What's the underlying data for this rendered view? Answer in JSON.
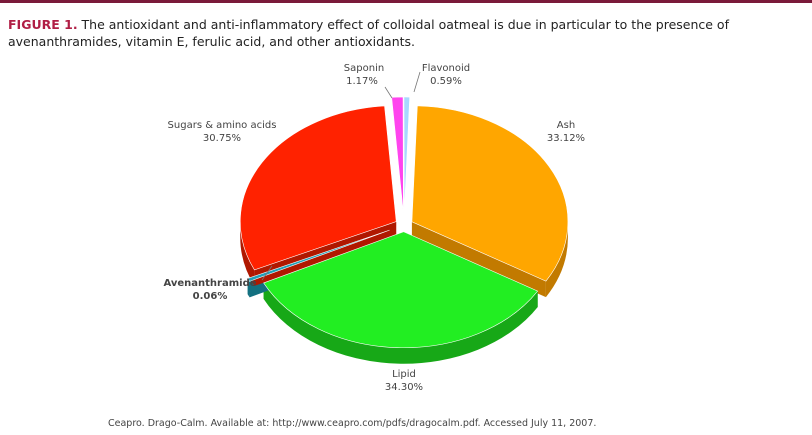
{
  "figure": {
    "label": "FIGURE 1.",
    "caption": "The antioxidant and anti-inflammatory effect of colloidal oatmeal is due in particular to the presence of avenanthramides, vitamin E, ferulic acid, and other antioxidants.",
    "source": "Ceapro. Drago-Calm. Available at: http://www.ceapro.com/pdfs/dragocalm.pdf. Accessed July 11, 2007."
  },
  "chart_data": {
    "type": "pie",
    "style": "3d-exploded",
    "slices": [
      {
        "name": "Ash",
        "value": 33.12,
        "label": "33.12%",
        "color": "#ffa600",
        "side": "#c27a00",
        "bold": false
      },
      {
        "name": "Lipid",
        "value": 34.3,
        "label": "34.30%",
        "color": "#22ee22",
        "side": "#17a817",
        "bold": false
      },
      {
        "name": "Avenanthramide",
        "value": 0.06,
        "label": "0.06%",
        "color": "#20a0b8",
        "side": "#137080",
        "bold": true
      },
      {
        "name": "Sugars & amino acids",
        "value": 30.75,
        "label": "30.75%",
        "color": "#ff2200",
        "side": "#b01800",
        "bold": false
      },
      {
        "name": "Saponin",
        "value": 1.17,
        "label": "1.17%",
        "color": "#ff44ee",
        "side": "#b02aa5",
        "bold": false
      },
      {
        "name": "Flavonoid",
        "value": 0.59,
        "label": "0.59%",
        "color": "#a8d8ff",
        "side": "#6fa0cc",
        "bold": false
      }
    ]
  }
}
